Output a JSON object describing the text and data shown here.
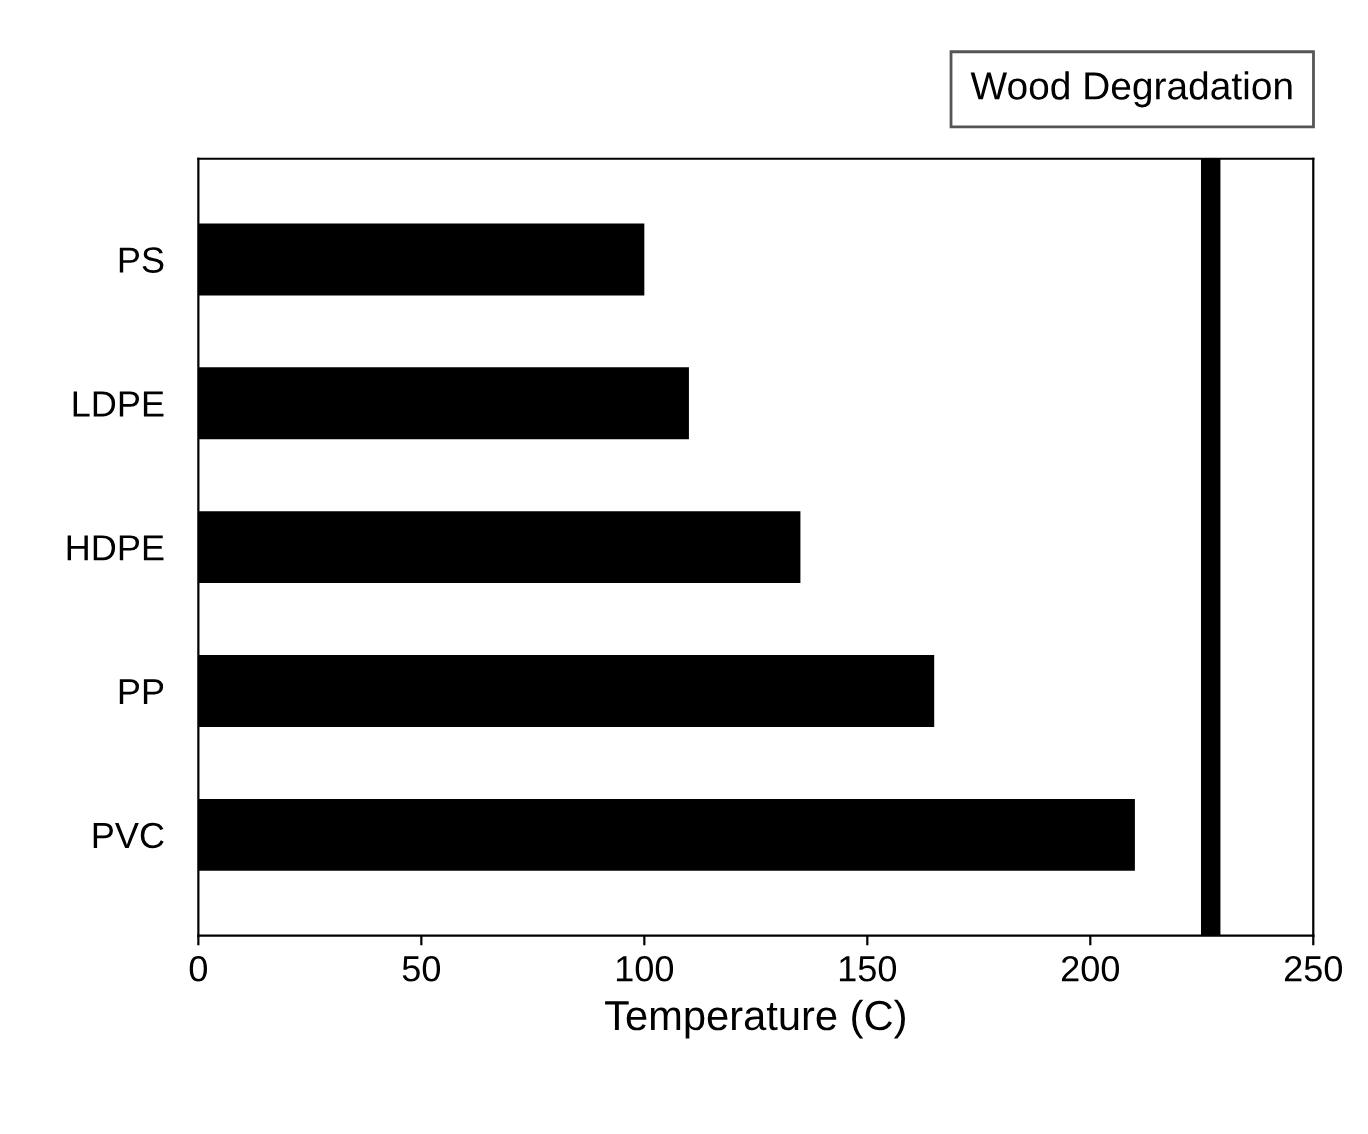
{
  "chart_data": {
    "type": "bar",
    "orientation": "horizontal",
    "xlabel": "Temperature (C)",
    "categories": [
      "PS",
      "LDPE",
      "HDPE",
      "PP",
      "PVC"
    ],
    "values": [
      100,
      110,
      135,
      165,
      210
    ],
    "color": "#000000",
    "xlim": [
      0,
      250
    ],
    "xticks": [
      0,
      50,
      100,
      150,
      200,
      250
    ],
    "grid": false,
    "ref_lines": [
      {
        "axis": "x",
        "value": 227,
        "label": "Wood Degradation",
        "color": "#000000",
        "line_style": "solid"
      }
    ]
  }
}
